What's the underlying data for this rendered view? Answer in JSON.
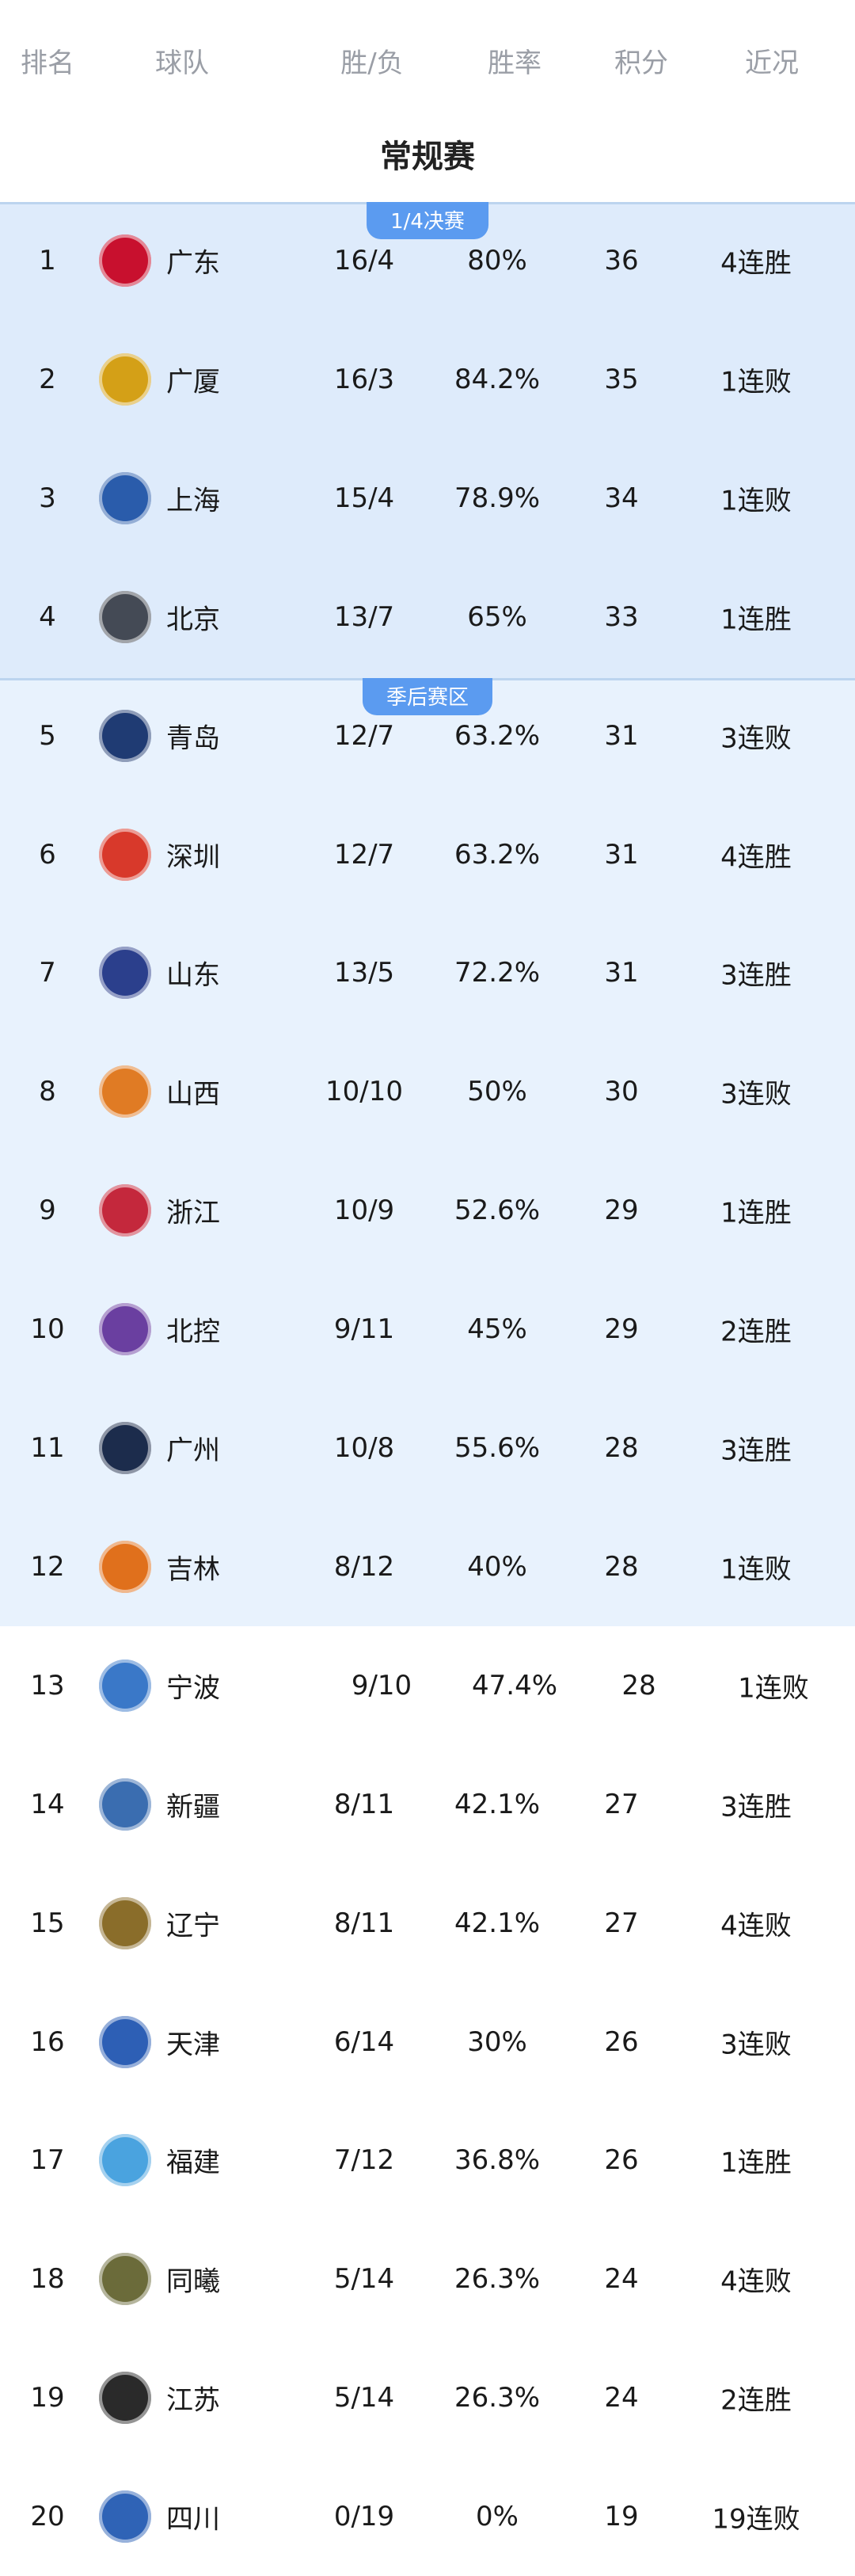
{
  "header": {
    "rank": "排名",
    "team": "球队",
    "wl": "胜/负",
    "pct": "胜率",
    "pts": "积分",
    "streak": "近况"
  },
  "section_title": "常规赛",
  "zones": [
    {
      "label": "1/4决赛",
      "color": "#deebfb"
    },
    {
      "label": "季后赛区",
      "color": "#e8f2fd"
    }
  ],
  "badge_color": "#5b9bf0",
  "rows": [
    {
      "rank": "1",
      "team": "广东",
      "wl": "16/4",
      "pct": "80%",
      "pts": "36",
      "streak": "4连胜",
      "logo_color": "#c8102e"
    },
    {
      "rank": "2",
      "team": "广厦",
      "wl": "16/3",
      "pct": "84.2%",
      "pts": "35",
      "streak": "1连败",
      "logo_color": "#d4a017"
    },
    {
      "rank": "3",
      "team": "上海",
      "wl": "15/4",
      "pct": "78.9%",
      "pts": "34",
      "streak": "1连败",
      "logo_color": "#2a5cab"
    },
    {
      "rank": "4",
      "team": "北京",
      "wl": "13/7",
      "pct": "65%",
      "pts": "33",
      "streak": "1连胜",
      "logo_color": "#444a55"
    },
    {
      "rank": "5",
      "team": "青岛",
      "wl": "12/7",
      "pct": "63.2%",
      "pts": "31",
      "streak": "3连败",
      "logo_color": "#1f3b73"
    },
    {
      "rank": "6",
      "team": "深圳",
      "wl": "12/7",
      "pct": "63.2%",
      "pts": "31",
      "streak": "4连胜",
      "logo_color": "#d8392b"
    },
    {
      "rank": "7",
      "team": "山东",
      "wl": "13/5",
      "pct": "72.2%",
      "pts": "31",
      "streak": "3连胜",
      "logo_color": "#2b3f8c"
    },
    {
      "rank": "8",
      "team": "山西",
      "wl": "10/10",
      "pct": "50%",
      "pts": "30",
      "streak": "3连败",
      "logo_color": "#e07b24"
    },
    {
      "rank": "9",
      "team": "浙江",
      "wl": "10/9",
      "pct": "52.6%",
      "pts": "29",
      "streak": "1连胜",
      "logo_color": "#c4283c"
    },
    {
      "rank": "10",
      "team": "北控",
      "wl": "9/11",
      "pct": "45%",
      "pts": "29",
      "streak": "2连胜",
      "logo_color": "#6a3fa0"
    },
    {
      "rank": "11",
      "team": "广州",
      "wl": "10/8",
      "pct": "55.6%",
      "pts": "28",
      "streak": "3连胜",
      "logo_color": "#1c2c4c"
    },
    {
      "rank": "12",
      "team": "吉林",
      "wl": "8/12",
      "pct": "40%",
      "pts": "28",
      "streak": "1连败",
      "logo_color": "#e0701c"
    },
    {
      "rank": "13",
      "team": "宁波",
      "wl": "9/10",
      "pct": "47.4%",
      "pts": "28",
      "streak": "1连败",
      "logo_color": "#3a78c8"
    },
    {
      "rank": "14",
      "team": "新疆",
      "wl": "8/11",
      "pct": "42.1%",
      "pts": "27",
      "streak": "3连胜",
      "logo_color": "#3a6db0"
    },
    {
      "rank": "15",
      "team": "辽宁",
      "wl": "8/11",
      "pct": "42.1%",
      "pts": "27",
      "streak": "4连败",
      "logo_color": "#8a6d2a"
    },
    {
      "rank": "16",
      "team": "天津",
      "wl": "6/14",
      "pct": "30%",
      "pts": "26",
      "streak": "3连败",
      "logo_color": "#2d5fb5"
    },
    {
      "rank": "17",
      "team": "福建",
      "wl": "7/12",
      "pct": "36.8%",
      "pts": "26",
      "streak": "1连胜",
      "logo_color": "#4aa3df"
    },
    {
      "rank": "18",
      "team": "同曦",
      "wl": "5/14",
      "pct": "26.3%",
      "pts": "24",
      "streak": "4连败",
      "logo_color": "#6b6b3a"
    },
    {
      "rank": "19",
      "team": "江苏",
      "wl": "5/14",
      "pct": "26.3%",
      "pts": "24",
      "streak": "2连胜",
      "logo_color": "#2a2a2a"
    },
    {
      "rank": "20",
      "team": "四川",
      "wl": "0/19",
      "pct": "0%",
      "pts": "19",
      "streak": "19连败",
      "logo_color": "#2f63b6"
    }
  ]
}
